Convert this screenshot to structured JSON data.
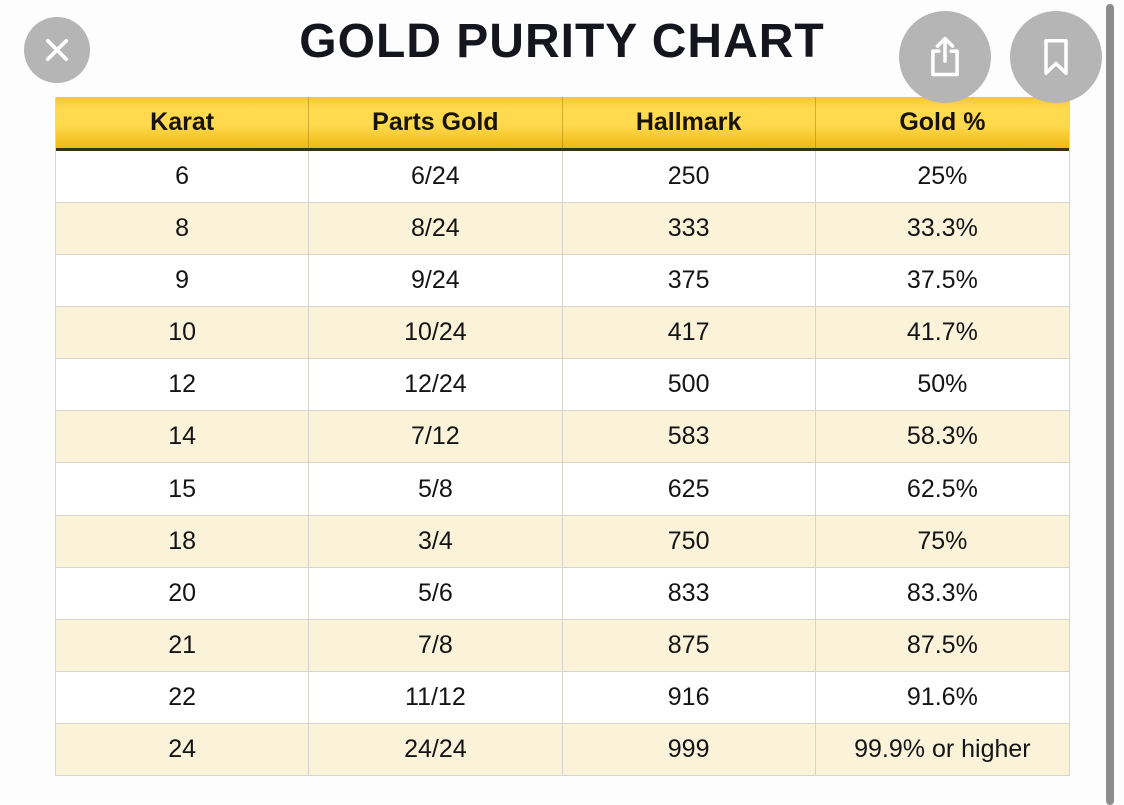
{
  "page": {
    "title": "GOLD PURITY CHART"
  },
  "toolbar": {
    "close_icon": "close-x",
    "share_icon": "share-up-arrow-box",
    "bookmark_icon": "bookmark-ribbon"
  },
  "table": {
    "columns": [
      "Karat",
      "Parts Gold",
      "Hallmark",
      "Gold %"
    ],
    "rows": [
      [
        "6",
        "6/24",
        "250",
        "25%"
      ],
      [
        "8",
        "8/24",
        "333",
        "33.3%"
      ],
      [
        "9",
        "9/24",
        "375",
        "37.5%"
      ],
      [
        "10",
        "10/24",
        "417",
        "41.7%"
      ],
      [
        "12",
        "12/24",
        "500",
        "50%"
      ],
      [
        "14",
        "7/12",
        "583",
        "58.3%"
      ],
      [
        "15",
        "5/8",
        "625",
        "62.5%"
      ],
      [
        "18",
        "3/4",
        "750",
        "75%"
      ],
      [
        "20",
        "5/6",
        "833",
        "83.3%"
      ],
      [
        "21",
        "7/8",
        "875",
        "87.5%"
      ],
      [
        "22",
        "11/12",
        "916",
        "91.6%"
      ],
      [
        "24",
        "24/24",
        "999",
        "99.9% or higher"
      ]
    ]
  },
  "colors": {
    "header_top": "#f2c53a",
    "header_mid": "#ffd94e",
    "header_bottom": "#efba12",
    "header_border": "#3a340d",
    "row_cream": "#fbf3d9",
    "row_white": "#ffffff",
    "grid_line": "#d6d4cd",
    "title_color": "#15151d",
    "button_gray": "#b5b5b5",
    "scrollbar_gray": "#8d8d8d",
    "cell_text": "#141414"
  }
}
